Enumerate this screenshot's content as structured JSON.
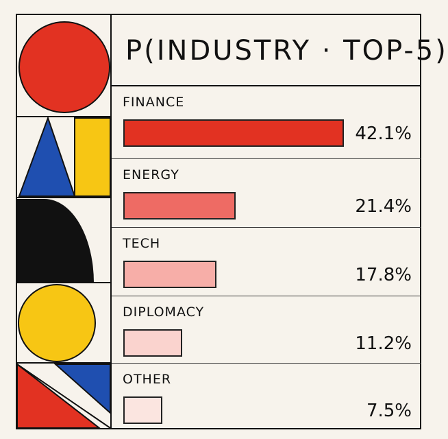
{
  "chart_data": {
    "type": "bar",
    "title": "P(INDUSTRY · TOP-5)",
    "categories": [
      "FINANCE",
      "ENERGY",
      "TECH",
      "DIPLOMACY",
      "OTHER"
    ],
    "values": [
      42.1,
      21.4,
      17.8,
      11.2,
      7.5
    ],
    "value_labels": [
      "42.1%",
      "21.4%",
      "17.8%",
      "11.2%",
      "7.5%"
    ],
    "bar_colors": [
      "#e23222",
      "#ee6b64",
      "#f7aea8",
      "#fad3ce",
      "#fbe5e0"
    ],
    "xlim": [
      0,
      42.1
    ],
    "grid": false,
    "legend": "none"
  },
  "decor": {
    "shapes": [
      "red-circle",
      "blue-triangle",
      "yellow-rectangle",
      "black-half-disc",
      "yellow-circle",
      "red-triangle",
      "blue-triangle"
    ],
    "colors": {
      "red": "#e23222",
      "blue": "#1f4fb0",
      "yellow": "#f7c614",
      "black": "#111111"
    }
  }
}
